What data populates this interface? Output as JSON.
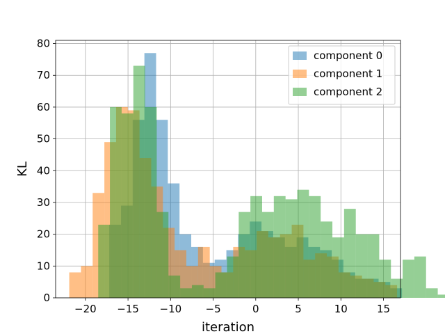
{
  "chart_data": {
    "type": "histogram",
    "xlabel": "iteration",
    "ylabel": "KL",
    "xlim": [
      -23.5,
      17.0
    ],
    "ylim": [
      0,
      81
    ],
    "xticks": [
      -20,
      -15,
      -10,
      -5,
      0,
      5,
      10,
      15
    ],
    "yticks": [
      0,
      10,
      20,
      30,
      40,
      50,
      60,
      70,
      80
    ],
    "grid": true,
    "legend_position": "top-right",
    "series": [
      {
        "name": "component 0",
        "color": "#1f77b4",
        "opacity": 0.5,
        "bin_start": -17.2,
        "bin_width": 1.375,
        "counts": [
          23,
          29,
          56,
          77,
          56,
          36,
          20,
          16,
          11,
          12,
          15,
          20,
          24,
          21,
          19,
          16,
          19,
          16,
          15,
          12,
          8,
          6,
          6,
          5,
          3
        ]
      },
      {
        "name": "component 1",
        "color": "#ff7f0e",
        "opacity": 0.5,
        "bin_start": -21.9,
        "bin_width": 1.375,
        "counts": [
          8,
          10,
          33,
          49,
          60,
          59,
          44,
          35,
          22,
          15,
          10,
          16,
          10,
          8,
          16,
          15,
          21,
          19,
          20,
          23,
          12,
          14,
          13,
          8,
          7,
          6,
          5,
          4
        ]
      },
      {
        "name": "component 2",
        "color": "#2ca02c",
        "opacity": 0.5,
        "bin_start": -18.5,
        "bin_width": 1.375,
        "counts": [
          23,
          60,
          58,
          73,
          60,
          27,
          7,
          3,
          4,
          3,
          8,
          13,
          27,
          32,
          27,
          32,
          31,
          34,
          32,
          24,
          19,
          28,
          20,
          20,
          12,
          6,
          12,
          13,
          3,
          1
        ]
      }
    ]
  }
}
